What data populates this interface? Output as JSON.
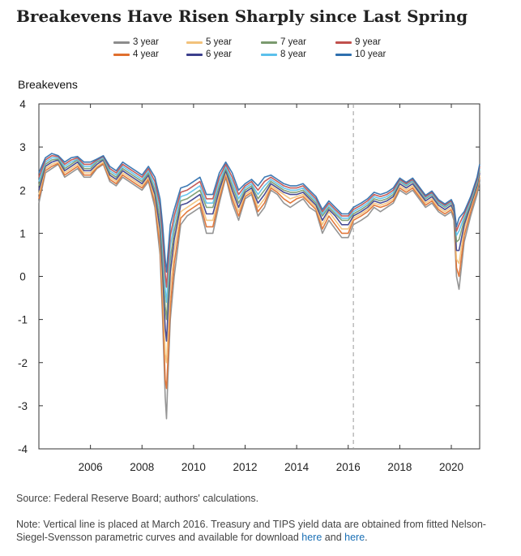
{
  "title": "Breakevens Have Risen Sharply since Last Spring",
  "source": "Source: Federal Reserve Board; authors' calculations.",
  "note": {
    "text_before": "Note: Vertical line is placed at March 2016. Treasury and TIPS yield data are obtained from fitted Nelson-Siegel-Svensson parametric curves and available for download ",
    "link1": "here",
    "middle": " and ",
    "link2": "here",
    "end": "."
  },
  "chart_data": {
    "type": "line",
    "title": "Breakevens Have Risen Sharply since Last Spring",
    "xlabel": "",
    "ylabel": "Breakevens",
    "xlim": [
      2004.0,
      2021.1
    ],
    "ylim": [
      -4,
      4
    ],
    "x_ticks": [
      2006,
      2008,
      2010,
      2012,
      2014,
      2016,
      2018,
      2020
    ],
    "y_ticks": [
      4,
      3,
      2,
      1,
      0,
      -1,
      -2,
      -3,
      -4
    ],
    "vertical_line": {
      "x": 2016.2,
      "label": "March 2016"
    },
    "grid": false,
    "legend_position": "top",
    "x": [
      2004.0,
      2004.25,
      2004.5,
      2004.75,
      2005.0,
      2005.25,
      2005.5,
      2005.75,
      2006.0,
      2006.25,
      2006.5,
      2006.75,
      2007.0,
      2007.25,
      2007.5,
      2007.75,
      2008.0,
      2008.25,
      2008.5,
      2008.7,
      2008.8,
      2008.9,
      2008.95,
      2009.0,
      2009.1,
      2009.25,
      2009.5,
      2009.75,
      2010.0,
      2010.25,
      2010.5,
      2010.75,
      2011.0,
      2011.25,
      2011.5,
      2011.75,
      2012.0,
      2012.25,
      2012.5,
      2012.75,
      2013.0,
      2013.25,
      2013.5,
      2013.75,
      2014.0,
      2014.25,
      2014.5,
      2014.75,
      2015.0,
      2015.25,
      2015.5,
      2015.75,
      2016.0,
      2016.2,
      2016.5,
      2016.75,
      2017.0,
      2017.25,
      2017.5,
      2017.75,
      2018.0,
      2018.25,
      2018.5,
      2018.75,
      2019.0,
      2019.25,
      2019.5,
      2019.75,
      2020.0,
      2020.1,
      2020.2,
      2020.3,
      2020.5,
      2020.75,
      2021.0,
      2021.1
    ],
    "series": [
      {
        "name": "3 year",
        "color": "#8c8c8c",
        "values": [
          1.7,
          2.4,
          2.5,
          2.6,
          2.3,
          2.4,
          2.5,
          2.3,
          2.3,
          2.5,
          2.6,
          2.2,
          2.1,
          2.3,
          2.2,
          2.1,
          2.0,
          2.2,
          1.6,
          0.5,
          -1.0,
          -2.8,
          -3.3,
          -2.4,
          -1.0,
          0.0,
          1.2,
          1.4,
          1.5,
          1.6,
          1.0,
          1.0,
          1.7,
          2.3,
          1.7,
          1.3,
          1.8,
          1.9,
          1.4,
          1.6,
          2.0,
          1.9,
          1.7,
          1.6,
          1.7,
          1.8,
          1.6,
          1.5,
          1.0,
          1.3,
          1.1,
          0.9,
          0.9,
          1.2,
          1.3,
          1.4,
          1.6,
          1.5,
          1.6,
          1.7,
          2.0,
          1.9,
          2.0,
          1.8,
          1.6,
          1.7,
          1.5,
          1.4,
          1.5,
          1.3,
          0.0,
          -0.3,
          0.8,
          1.4,
          1.9,
          2.2
        ]
      },
      {
        "name": "4 year",
        "color": "#e06f2e",
        "values": [
          1.8,
          2.45,
          2.55,
          2.62,
          2.35,
          2.45,
          2.55,
          2.35,
          2.35,
          2.52,
          2.62,
          2.25,
          2.15,
          2.35,
          2.25,
          2.15,
          2.05,
          2.25,
          1.7,
          0.7,
          -0.7,
          -2.4,
          -2.6,
          -2.0,
          -0.7,
          0.3,
          1.35,
          1.5,
          1.6,
          1.7,
          1.15,
          1.15,
          1.8,
          2.35,
          1.8,
          1.4,
          1.85,
          1.95,
          1.5,
          1.7,
          2.05,
          1.95,
          1.8,
          1.7,
          1.8,
          1.85,
          1.7,
          1.55,
          1.1,
          1.4,
          1.2,
          1.0,
          1.0,
          1.3,
          1.4,
          1.5,
          1.65,
          1.6,
          1.65,
          1.75,
          2.05,
          1.95,
          2.05,
          1.85,
          1.65,
          1.75,
          1.55,
          1.45,
          1.55,
          1.4,
          0.2,
          0.0,
          0.95,
          1.5,
          2.0,
          2.3
        ]
      },
      {
        "name": "5 year",
        "color": "#f2c27b",
        "values": [
          1.9,
          2.5,
          2.6,
          2.65,
          2.4,
          2.5,
          2.6,
          2.4,
          2.4,
          2.55,
          2.65,
          2.3,
          2.2,
          2.4,
          2.3,
          2.2,
          2.1,
          2.3,
          1.8,
          0.9,
          -0.3,
          -1.8,
          -2.0,
          -1.4,
          -0.3,
          0.6,
          1.5,
          1.6,
          1.7,
          1.8,
          1.3,
          1.3,
          1.9,
          2.4,
          1.9,
          1.5,
          1.9,
          2.0,
          1.6,
          1.8,
          2.1,
          2.0,
          1.9,
          1.8,
          1.85,
          1.9,
          1.75,
          1.6,
          1.2,
          1.5,
          1.3,
          1.1,
          1.1,
          1.35,
          1.45,
          1.55,
          1.7,
          1.65,
          1.7,
          1.8,
          2.1,
          2.0,
          2.1,
          1.9,
          1.7,
          1.8,
          1.6,
          1.5,
          1.6,
          1.45,
          0.4,
          0.3,
          1.1,
          1.6,
          2.05,
          2.35
        ]
      },
      {
        "name": "6 year",
        "color": "#3b3f8c",
        "values": [
          2.0,
          2.55,
          2.65,
          2.7,
          2.45,
          2.55,
          2.65,
          2.45,
          2.45,
          2.6,
          2.7,
          2.35,
          2.25,
          2.45,
          2.35,
          2.25,
          2.15,
          2.35,
          1.9,
          1.1,
          0.1,
          -1.2,
          -1.5,
          -0.9,
          0.1,
          0.85,
          1.65,
          1.7,
          1.8,
          1.9,
          1.45,
          1.45,
          2.0,
          2.45,
          2.0,
          1.6,
          1.95,
          2.05,
          1.7,
          1.9,
          2.15,
          2.05,
          1.95,
          1.9,
          1.9,
          1.95,
          1.8,
          1.65,
          1.3,
          1.55,
          1.4,
          1.2,
          1.2,
          1.4,
          1.5,
          1.6,
          1.75,
          1.7,
          1.75,
          1.85,
          2.15,
          2.05,
          2.15,
          1.95,
          1.75,
          1.85,
          1.65,
          1.55,
          1.65,
          1.5,
          0.6,
          0.6,
          1.2,
          1.65,
          2.1,
          2.4
        ]
      },
      {
        "name": "7 year",
        "color": "#7a9a6e",
        "values": [
          2.1,
          2.6,
          2.7,
          2.72,
          2.5,
          2.6,
          2.7,
          2.5,
          2.5,
          2.65,
          2.72,
          2.4,
          2.3,
          2.5,
          2.4,
          2.3,
          2.2,
          2.4,
          2.0,
          1.3,
          0.4,
          -0.7,
          -1.0,
          -0.5,
          0.4,
          1.05,
          1.75,
          1.8,
          1.9,
          2.0,
          1.6,
          1.6,
          2.1,
          2.5,
          2.1,
          1.7,
          2.0,
          2.1,
          1.8,
          2.0,
          2.2,
          2.1,
          2.0,
          1.95,
          1.95,
          2.0,
          1.85,
          1.7,
          1.4,
          1.6,
          1.45,
          1.3,
          1.3,
          1.45,
          1.55,
          1.65,
          1.8,
          1.75,
          1.8,
          1.9,
          2.2,
          2.1,
          2.2,
          2.0,
          1.8,
          1.9,
          1.7,
          1.6,
          1.7,
          1.55,
          0.8,
          0.85,
          1.3,
          1.7,
          2.15,
          2.45
        ]
      },
      {
        "name": "8 year",
        "color": "#5bc0eb",
        "values": [
          2.2,
          2.65,
          2.75,
          2.75,
          2.55,
          2.65,
          2.72,
          2.55,
          2.55,
          2.68,
          2.75,
          2.45,
          2.35,
          2.55,
          2.45,
          2.35,
          2.25,
          2.45,
          2.1,
          1.5,
          0.7,
          -0.3,
          -0.6,
          -0.1,
          0.7,
          1.25,
          1.85,
          1.9,
          2.0,
          2.1,
          1.7,
          1.7,
          2.2,
          2.55,
          2.2,
          1.8,
          2.05,
          2.15,
          1.9,
          2.1,
          2.25,
          2.15,
          2.05,
          2.0,
          2.0,
          2.05,
          1.9,
          1.75,
          1.45,
          1.65,
          1.5,
          1.35,
          1.35,
          1.5,
          1.6,
          1.7,
          1.85,
          1.8,
          1.85,
          1.95,
          2.22,
          2.12,
          2.22,
          2.02,
          1.82,
          1.92,
          1.72,
          1.62,
          1.72,
          1.58,
          0.95,
          1.05,
          1.38,
          1.75,
          2.2,
          2.5
        ]
      },
      {
        "name": "9 year",
        "color": "#c0504d",
        "values": [
          2.3,
          2.7,
          2.8,
          2.78,
          2.6,
          2.7,
          2.75,
          2.6,
          2.6,
          2.7,
          2.78,
          2.5,
          2.4,
          2.6,
          2.5,
          2.4,
          2.3,
          2.5,
          2.2,
          1.65,
          0.95,
          0.05,
          -0.25,
          0.2,
          0.95,
          1.4,
          1.95,
          2.0,
          2.1,
          2.2,
          1.8,
          1.8,
          2.3,
          2.6,
          2.3,
          1.9,
          2.1,
          2.2,
          2.0,
          2.2,
          2.3,
          2.2,
          2.1,
          2.05,
          2.05,
          2.1,
          1.95,
          1.8,
          1.5,
          1.7,
          1.55,
          1.4,
          1.4,
          1.55,
          1.65,
          1.75,
          1.9,
          1.85,
          1.9,
          2.0,
          2.25,
          2.15,
          2.25,
          2.05,
          1.85,
          1.95,
          1.75,
          1.65,
          1.75,
          1.6,
          1.05,
          1.2,
          1.45,
          1.8,
          2.25,
          2.55
        ]
      },
      {
        "name": "10 year",
        "color": "#2e6fae",
        "values": [
          2.4,
          2.75,
          2.85,
          2.8,
          2.65,
          2.75,
          2.78,
          2.65,
          2.65,
          2.72,
          2.8,
          2.55,
          2.45,
          2.65,
          2.55,
          2.45,
          2.35,
          2.55,
          2.3,
          1.8,
          1.2,
          0.4,
          0.1,
          0.5,
          1.2,
          1.55,
          2.05,
          2.1,
          2.2,
          2.3,
          1.9,
          1.9,
          2.4,
          2.65,
          2.4,
          2.0,
          2.15,
          2.25,
          2.1,
          2.3,
          2.35,
          2.25,
          2.15,
          2.1,
          2.1,
          2.15,
          2.0,
          1.85,
          1.55,
          1.75,
          1.6,
          1.45,
          1.45,
          1.6,
          1.7,
          1.8,
          1.95,
          1.9,
          1.95,
          2.05,
          2.28,
          2.18,
          2.28,
          2.08,
          1.88,
          1.98,
          1.78,
          1.68,
          1.78,
          1.65,
          1.15,
          1.35,
          1.5,
          1.85,
          2.3,
          2.6
        ]
      }
    ]
  }
}
